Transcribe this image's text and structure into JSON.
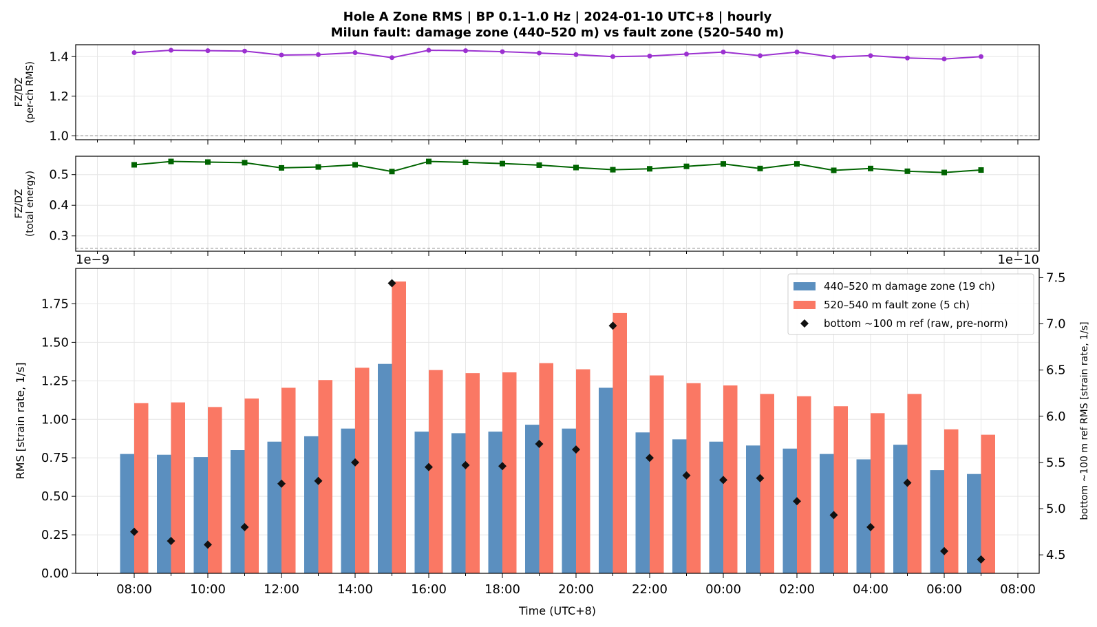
{
  "chart_data": [
    {
      "type": "line",
      "panel": "top",
      "title": "Hole A Zone RMS  |  BP 0.1–1.0 Hz  |  2024-01-10 UTC+8  |  hourly",
      "subtitle": "Milun fault: damage zone (440–520 m) vs fault zone (520–540 m)",
      "ylabel_line1": "FZ/DZ",
      "ylabel_line2": "(per-ch RMS)",
      "ylim": [
        0.98,
        1.46
      ],
      "yticks": [
        "1.0",
        "1.2",
        "1.4"
      ],
      "reference_line": 1.0,
      "color": "#9b30d0",
      "values": [
        1.42,
        1.432,
        1.43,
        1.428,
        1.408,
        1.41,
        1.42,
        1.395,
        1.432,
        1.43,
        1.425,
        1.418,
        1.41,
        1.4,
        1.403,
        1.413,
        1.423,
        1.405,
        1.423,
        1.398,
        1.405,
        1.393,
        1.388,
        1.4
      ]
    },
    {
      "type": "line",
      "panel": "middle",
      "ylabel_line1": "FZ/DZ",
      "ylabel_line2": "(total energy)",
      "ylim": [
        0.25,
        0.56
      ],
      "yticks": [
        "0.3",
        "0.4",
        "0.5"
      ],
      "reference_line": 0.26,
      "color": "#006400",
      "values": [
        0.532,
        0.543,
        0.541,
        0.539,
        0.522,
        0.525,
        0.532,
        0.51,
        0.543,
        0.54,
        0.536,
        0.531,
        0.523,
        0.516,
        0.519,
        0.527,
        0.535,
        0.52,
        0.535,
        0.514,
        0.52,
        0.511,
        0.507,
        0.515
      ]
    },
    {
      "type": "bar",
      "panel": "bottom",
      "xlabel": "Time (UTC+8)",
      "ylabel": "RMS  [strain rate, 1/s]",
      "y2label": "bottom ~100 m ref RMS  [strain rate, 1/s]",
      "offset_left": "1e−9",
      "offset_right": "1e−10",
      "ylim": [
        0,
        1.98
      ],
      "y2lim": [
        4.3,
        7.6
      ],
      "yticks": [
        "0.00",
        "0.25",
        "0.50",
        "0.75",
        "1.00",
        "1.25",
        "1.50",
        "1.75"
      ],
      "y2ticks": [
        "4.5",
        "5.0",
        "5.5",
        "6.0",
        "6.5",
        "7.0",
        "7.5"
      ],
      "xtick_labels": [
        "08:00",
        "10:00",
        "12:00",
        "14:00",
        "16:00",
        "18:00",
        "20:00",
        "22:00",
        "00:00",
        "02:00",
        "04:00",
        "06:00",
        "08:00"
      ],
      "series": [
        {
          "name": "440–520 m  damage zone (19 ch)",
          "color": "#5b8fbf",
          "values": [
            0.775,
            0.77,
            0.755,
            0.8,
            0.855,
            0.89,
            0.94,
            1.36,
            0.92,
            0.91,
            0.92,
            0.965,
            0.94,
            1.205,
            0.915,
            0.87,
            0.855,
            0.83,
            0.81,
            0.775,
            0.74,
            0.835,
            0.67,
            0.645
          ]
        },
        {
          "name": "520–540 m  fault zone (5 ch)",
          "color": "#fa7864",
          "values": [
            1.105,
            1.11,
            1.08,
            1.135,
            1.205,
            1.255,
            1.335,
            1.895,
            1.32,
            1.3,
            1.305,
            1.365,
            1.325,
            1.69,
            1.285,
            1.235,
            1.22,
            1.165,
            1.15,
            1.085,
            1.04,
            1.165,
            0.935,
            0.9
          ]
        },
        {
          "name": "bottom ~100 m ref (raw, pre-norm)",
          "color": "#111111",
          "axis": "right",
          "values": [
            4.75,
            4.65,
            4.61,
            4.8,
            5.27,
            5.3,
            5.5,
            7.44,
            5.45,
            5.47,
            5.46,
            5.7,
            5.64,
            6.98,
            5.55,
            5.36,
            5.31,
            5.33,
            5.08,
            4.93,
            4.8,
            5.28,
            4.54,
            4.45
          ]
        }
      ]
    }
  ]
}
